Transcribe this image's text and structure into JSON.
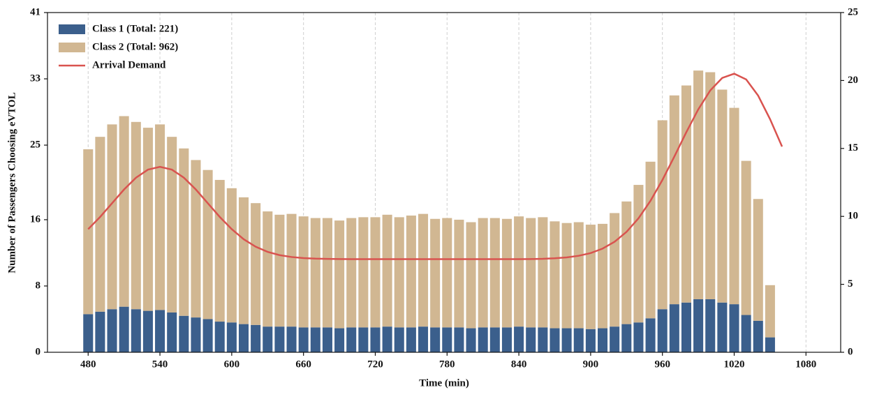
{
  "chart_data": {
    "type": "bar",
    "stacked": true,
    "x_label": "Time (min)",
    "y_label": "Number of Passengers Choosing eVTOL",
    "xlim": [
      446,
      1109
    ],
    "xticks": [
      480,
      540,
      600,
      660,
      720,
      780,
      840,
      900,
      960,
      1020,
      1080
    ],
    "ylim": [
      0,
      41
    ],
    "yticks": [
      0,
      8,
      16,
      25,
      33,
      41
    ],
    "y2lim": [
      0,
      25
    ],
    "y2ticks": [
      0,
      5,
      10,
      15,
      20,
      25
    ],
    "grid": true,
    "legend": "upper left",
    "x": [
      480,
      490,
      500,
      510,
      520,
      530,
      540,
      550,
      560,
      570,
      580,
      590,
      600,
      610,
      620,
      630,
      640,
      650,
      660,
      670,
      680,
      690,
      700,
      710,
      720,
      730,
      740,
      750,
      760,
      770,
      780,
      790,
      800,
      810,
      820,
      830,
      840,
      850,
      860,
      870,
      880,
      890,
      900,
      910,
      920,
      930,
      940,
      950,
      960,
      970,
      980,
      990,
      1000,
      1010,
      1020,
      1030,
      1040,
      1050
    ],
    "series": [
      {
        "name": "Class 1 (Total: 221)",
        "color": "#3b5f8c",
        "values": [
          4.6,
          4.9,
          5.2,
          5.5,
          5.2,
          5.0,
          5.1,
          4.8,
          4.4,
          4.2,
          4.0,
          3.7,
          3.6,
          3.4,
          3.3,
          3.1,
          3.1,
          3.1,
          3.0,
          3.0,
          3.0,
          2.9,
          3.0,
          3.0,
          3.0,
          3.1,
          3.0,
          3.0,
          3.1,
          3.0,
          3.0,
          3.0,
          2.9,
          3.0,
          3.0,
          3.0,
          3.1,
          3.0,
          3.0,
          2.9,
          2.9,
          2.9,
          2.8,
          2.9,
          3.1,
          3.4,
          3.6,
          4.1,
          5.2,
          5.8,
          6.0,
          6.4,
          6.4,
          6.0,
          5.8,
          4.5,
          3.8,
          1.8
        ]
      },
      {
        "name": "Class 2 (Total: 962)",
        "color": "#d1b792",
        "values": [
          19.9,
          21.1,
          22.3,
          23.0,
          22.6,
          22.1,
          22.4,
          21.2,
          20.2,
          19.0,
          18.0,
          17.1,
          16.2,
          15.3,
          14.7,
          13.9,
          13.5,
          13.6,
          13.4,
          13.2,
          13.2,
          13.0,
          13.2,
          13.3,
          13.3,
          13.5,
          13.3,
          13.5,
          13.6,
          13.1,
          13.2,
          13.0,
          12.8,
          13.2,
          13.2,
          13.1,
          13.3,
          13.2,
          13.3,
          12.9,
          12.7,
          12.8,
          12.6,
          12.6,
          13.7,
          14.8,
          16.6,
          18.9,
          22.8,
          25.2,
          26.2,
          27.6,
          27.4,
          25.7,
          23.7,
          18.6,
          14.7,
          6.3
        ]
      },
      {
        "name": "Arrival Demand",
        "color": "#d9534f",
        "type": "line",
        "axis": "y2",
        "x": [
          480,
          490,
          500,
          510,
          520,
          530,
          540,
          550,
          560,
          570,
          580,
          590,
          600,
          610,
          620,
          630,
          640,
          650,
          660,
          670,
          680,
          690,
          700,
          710,
          720,
          730,
          740,
          750,
          760,
          770,
          780,
          790,
          800,
          810,
          820,
          830,
          840,
          850,
          860,
          870,
          880,
          890,
          900,
          910,
          920,
          930,
          940,
          950,
          960,
          970,
          980,
          990,
          1000,
          1010,
          1020,
          1030,
          1040,
          1050,
          1060
        ],
        "values": [
          9.06,
          9.96,
          10.97,
          11.98,
          12.85,
          13.44,
          13.65,
          13.44,
          12.85,
          11.98,
          10.97,
          9.96,
          9.06,
          8.32,
          7.77,
          7.39,
          7.15,
          7.01,
          6.93,
          6.89,
          6.87,
          6.86,
          6.85,
          6.85,
          6.85,
          6.85,
          6.85,
          6.85,
          6.85,
          6.85,
          6.85,
          6.85,
          6.85,
          6.85,
          6.85,
          6.85,
          6.85,
          6.86,
          6.88,
          6.92,
          6.98,
          7.1,
          7.3,
          7.63,
          8.13,
          8.86,
          9.86,
          11.14,
          12.68,
          14.41,
          16.2,
          17.88,
          19.27,
          20.19,
          20.5,
          20.08,
          18.89,
          17.15,
          15.14
        ]
      }
    ]
  }
}
